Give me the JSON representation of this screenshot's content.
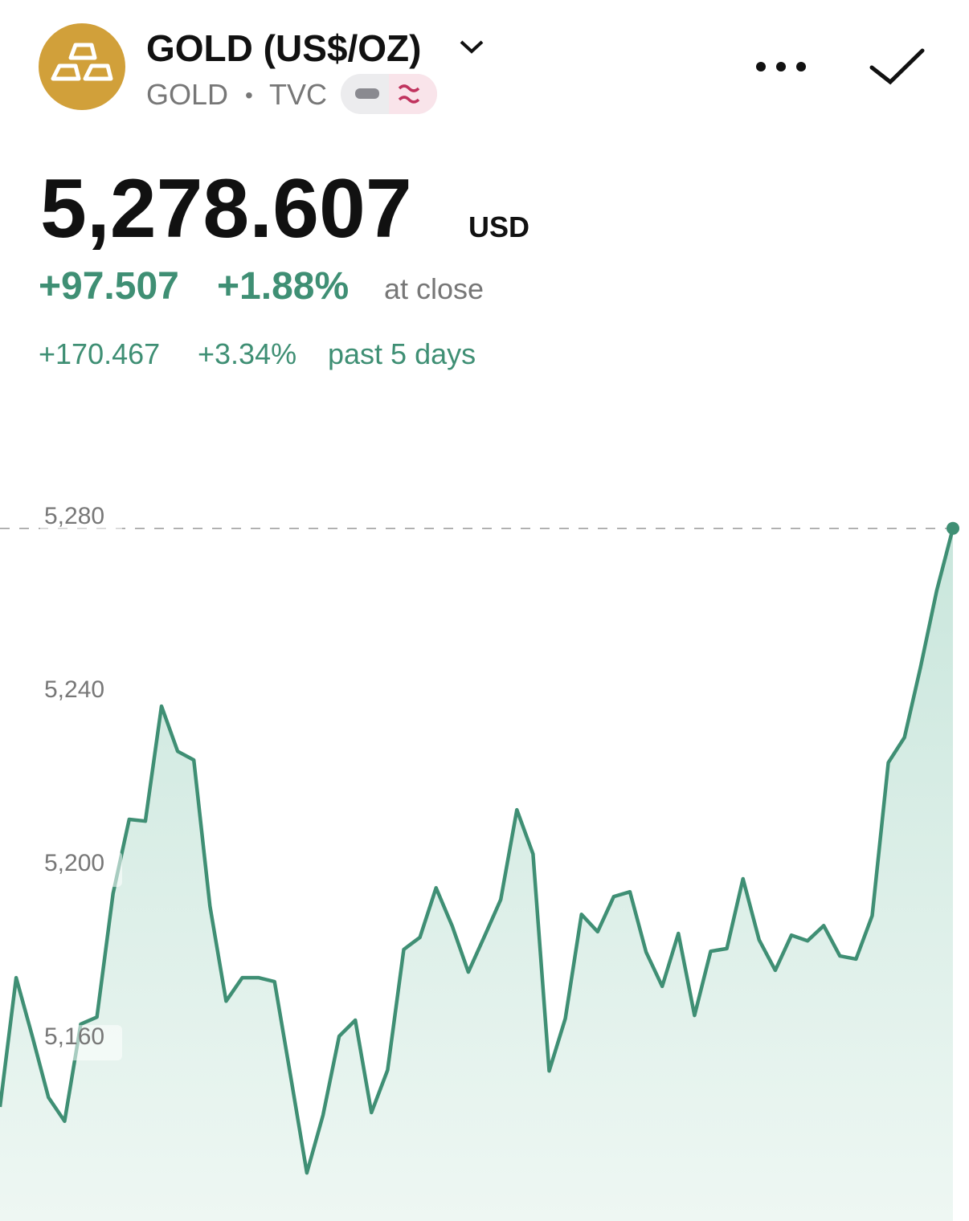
{
  "header": {
    "title": "GOLD (US$/OZ)",
    "symbol": "GOLD",
    "separator": "•",
    "exchange": "TVC"
  },
  "quote": {
    "price": "5,278.607",
    "currency": "USD",
    "change": "+97.507",
    "change_percent": "+1.88%",
    "status": "at close",
    "period_change": "+170.467",
    "period_change_percent": "+3.34%",
    "period_label": "past 5 days"
  },
  "chart_data": {
    "type": "area",
    "color": "#3f8f74",
    "values": [
      5145.2,
      5175.0,
      5161.5,
      5147.4,
      5141.9,
      5164.3,
      5165.9,
      5194.4,
      5211.5,
      5211.1,
      5237.6,
      5227.2,
      5225.2,
      5191.5,
      5169.6,
      5175.0,
      5175.0,
      5174.1,
      5152.2,
      5130.0,
      5143.3,
      5161.5,
      5165.2,
      5143.9,
      5153.7,
      5181.5,
      5184.3,
      5195.7,
      5186.9,
      5176.3,
      5184.6,
      5193.0,
      5213.7,
      5203.5,
      5153.5,
      5165.6,
      5189.6,
      5185.6,
      5193.7,
      5194.8,
      5180.9,
      5173.0,
      5185.2,
      5166.3,
      5181.1,
      5181.7,
      5197.8,
      5183.7,
      5176.7,
      5184.8,
      5183.5,
      5187.0,
      5180.0,
      5179.3,
      5189.3,
      5224.6,
      5230.4,
      5246.7,
      5264.3,
      5278.607
    ],
    "ylim": [
      5118.9,
      5296.7
    ],
    "yticks": [
      {
        "value": 5160,
        "label": "5,160"
      },
      {
        "value": 5200,
        "label": "5,200"
      },
      {
        "value": 5240,
        "label": "5,240"
      },
      {
        "value": 5280,
        "label": "5,280"
      }
    ]
  }
}
